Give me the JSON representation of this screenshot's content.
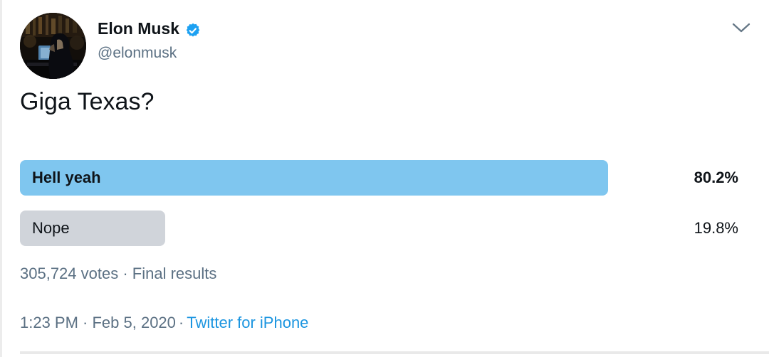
{
  "header": {
    "display_name": "Elon Musk",
    "handle": "@elonmusk",
    "icons": {
      "verified": "verified-badge-icon",
      "more": "chevron-down-icon"
    }
  },
  "tweet": {
    "text": "Giga Texas?"
  },
  "poll": {
    "options": [
      {
        "label": "Hell yeah",
        "percent_label": "80.2%",
        "percent_value": 80.2,
        "winner": true
      },
      {
        "label": "Nope",
        "percent_label": "19.8%",
        "percent_value": 19.8,
        "winner": false
      }
    ],
    "votes_summary": "305,724 votes · Final results"
  },
  "footer": {
    "time_and_date": "1:23 PM · Feb 5, 2020",
    "separator": "·",
    "source_link": "Twitter for iPhone"
  },
  "colors": {
    "winner_bar": "#7FC6EF",
    "loser_bar": "#D0D4DA",
    "link": "#1B95E0",
    "muted_text": "#5B7083",
    "text": "#0F1419",
    "badge": "#1DA1F2",
    "divider": "#E9E9E9",
    "left_edge": "#ECECEC"
  },
  "chart_data": {
    "type": "bar",
    "title": "Giga Texas?",
    "categories": [
      "Hell yeah",
      "Nope"
    ],
    "values": [
      80.2,
      19.8
    ],
    "value_labels": [
      "80.2%",
      "19.8%"
    ],
    "total_votes": "305,724",
    "status": "Final results",
    "xlim": [
      0,
      100
    ]
  }
}
